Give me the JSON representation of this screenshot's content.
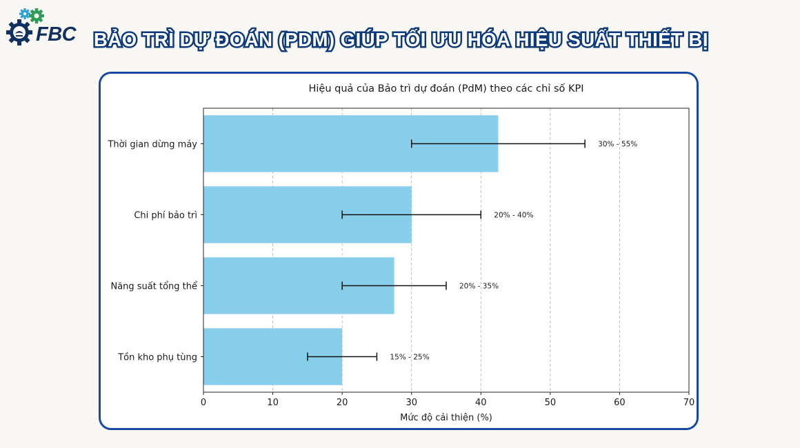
{
  "brand": {
    "logo_text": "FBC"
  },
  "page_title": "BẢO TRÌ DỰ ĐOÁN (PDM) GIÚP TỐI ƯU HÓA HIỆU SUẤT THIẾT BỊ",
  "colors": {
    "bar": "#87ceeb",
    "frame": "#144aa1",
    "title_stroke": "#0c3a7a",
    "grid": "#b0b0b0"
  },
  "chart_data": {
    "type": "bar",
    "orientation": "horizontal",
    "title": "Hiệu quả của Bảo trì dự đoán (PdM) theo các chỉ số KPI",
    "xlabel": "Mức độ cải thiện (%)",
    "ylabel": "",
    "xlim": [
      0,
      70
    ],
    "xticks": [
      0,
      10,
      20,
      30,
      40,
      50,
      60,
      70
    ],
    "grid": "x-dashed",
    "categories": [
      "Thời gian dừng máy",
      "Chi phí bảo trì",
      "Năng suất tổng thể",
      "Tồn kho phụ tùng"
    ],
    "values": [
      42.5,
      30,
      27.5,
      20
    ],
    "error_ranges": [
      [
        30,
        55
      ],
      [
        20,
        40
      ],
      [
        20,
        35
      ],
      [
        15,
        25
      ]
    ],
    "data_labels": [
      "30% - 55%",
      "20% - 40%",
      "20% - 35%",
      "15% - 25%"
    ]
  }
}
